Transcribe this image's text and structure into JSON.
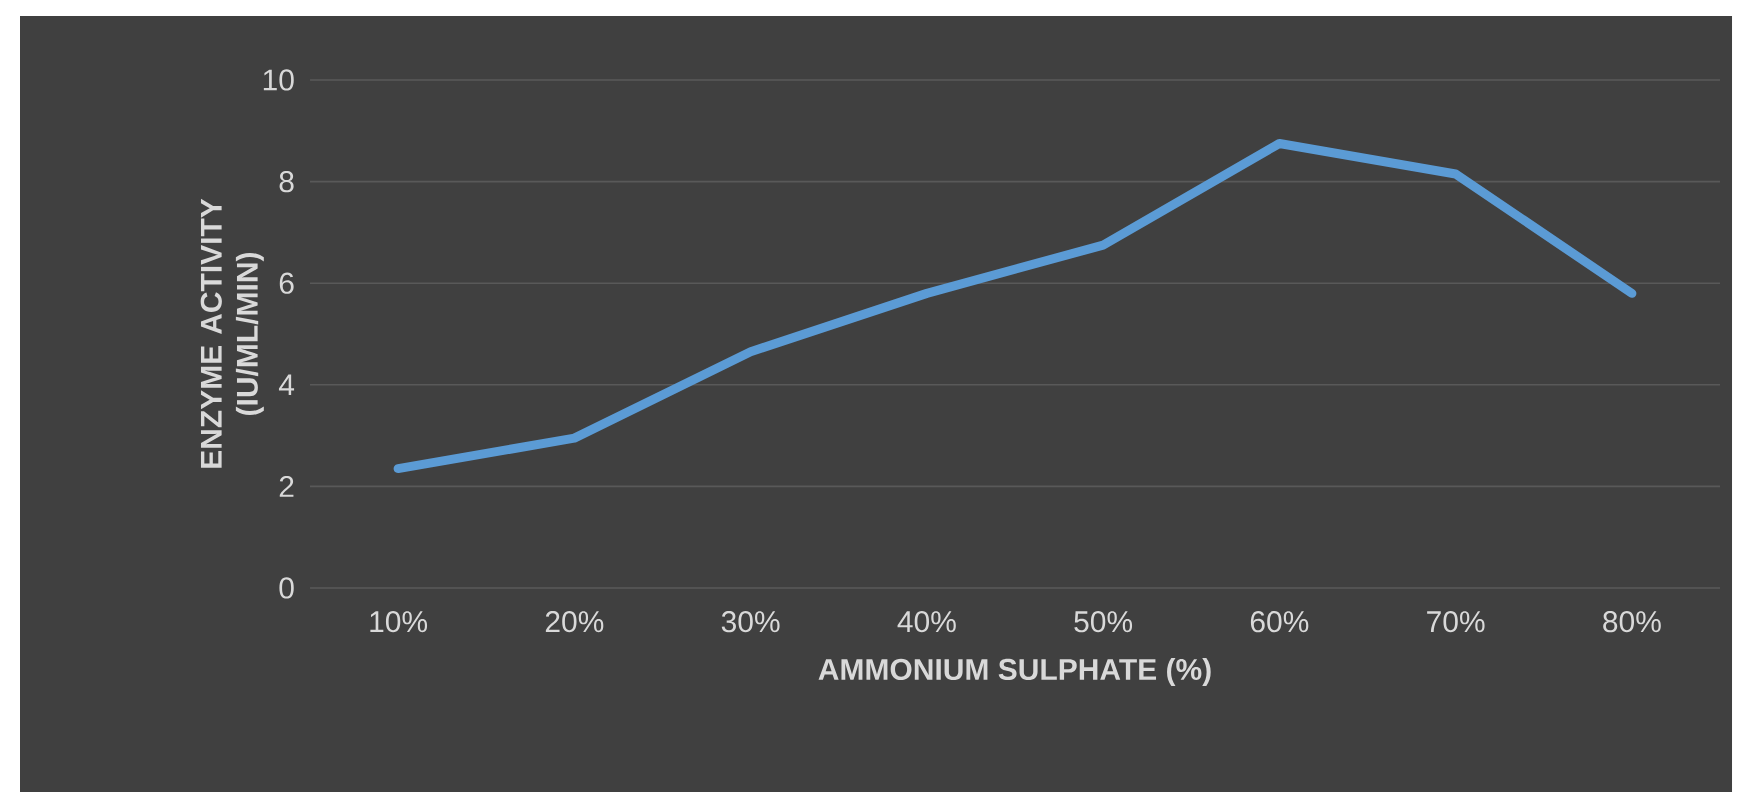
{
  "chart_data": {
    "type": "line",
    "xlabel": "AMMONIUM SULPHATE (%)",
    "ylabel": "ENZYME ACTIVITY (IU/ML/MIN)",
    "categories": [
      "10%",
      "20%",
      "30%",
      "40%",
      "50%",
      "60%",
      "70%",
      "80%"
    ],
    "series": [
      {
        "color": "#5b9bd5",
        "values": [
          2.35,
          2.95,
          4.65,
          5.8,
          6.75,
          8.75,
          8.15,
          5.8
        ]
      }
    ],
    "ylim": [
      0,
      10
    ],
    "yticks": [
      0,
      2,
      4,
      6,
      8,
      10
    ],
    "grid": "y"
  }
}
